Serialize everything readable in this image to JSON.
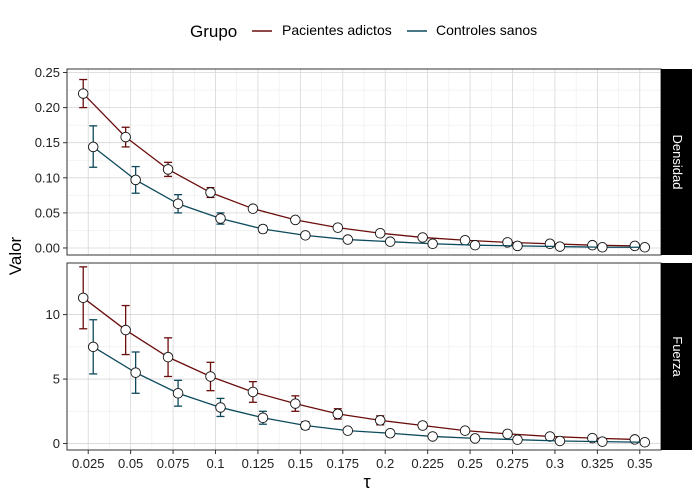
{
  "chart_data": {
    "type": "line",
    "legend": {
      "title": "Grupo",
      "placement": "top",
      "entries": [
        {
          "name": "Pacientes adictos",
          "color": "#6b0d0d"
        },
        {
          "name": "Controles sanos",
          "color": "#0d4a5c"
        }
      ]
    },
    "xlabel": "τ",
    "ylabel": "Valor",
    "x_ticks": [
      "0.025",
      "0.05",
      "0.075",
      "0.1",
      "0.125",
      "0.15",
      "0.175",
      "0.2",
      "0.225",
      "0.25",
      "0.275",
      "0.3",
      "0.325",
      "0.35"
    ],
    "x": [
      0.025,
      0.05,
      0.075,
      0.1,
      0.125,
      0.15,
      0.175,
      0.2,
      0.225,
      0.25,
      0.275,
      0.3,
      0.325,
      0.35
    ],
    "xlim": [
      0.0125,
      0.3625
    ],
    "grid": true,
    "panels": [
      {
        "strip": "Densidad",
        "ylim": [
          -0.01,
          0.255
        ],
        "y_ticks": [
          "0.00",
          "0.05",
          "0.10",
          "0.15",
          "0.20",
          "0.25"
        ],
        "y_tick_values": [
          0,
          0.05,
          0.1,
          0.15,
          0.2,
          0.25
        ],
        "series": [
          {
            "name": "Pacientes adictos",
            "values": [
              0.22,
              0.158,
              0.112,
              0.079,
              0.056,
              0.04,
              0.029,
              0.021,
              0.015,
              0.011,
              0.008,
              0.006,
              0.004,
              0.003
            ],
            "lower": [
              0.2,
              0.144,
              0.102,
              0.072,
              0.052,
              0.037,
              0.027,
              0.019,
              0.014,
              0.01,
              0.007,
              0.005,
              0.003,
              0.002
            ],
            "upper": [
              0.24,
              0.172,
              0.122,
              0.086,
              0.06,
              0.043,
              0.031,
              0.023,
              0.016,
              0.012,
              0.009,
              0.007,
              0.005,
              0.004
            ]
          },
          {
            "name": "Controles sanos",
            "values": [
              0.144,
              0.097,
              0.063,
              0.042,
              0.027,
              0.018,
              0.012,
              0.009,
              0.006,
              0.004,
              0.003,
              0.002,
              0.001,
              0.001
            ],
            "lower": [
              0.115,
              0.078,
              0.05,
              0.034,
              0.022,
              0.015,
              0.01,
              0.007,
              0.005,
              0.003,
              0.002,
              0.001,
              0.0005,
              0.0005
            ],
            "upper": [
              0.174,
              0.116,
              0.076,
              0.05,
              0.032,
              0.021,
              0.014,
              0.011,
              0.007,
              0.005,
              0.004,
              0.003,
              0.0015,
              0.0015
            ]
          }
        ]
      },
      {
        "strip": "Fuerza",
        "ylim": [
          -0.5,
          14.0
        ],
        "y_ticks": [
          "0",
          "5",
          "10"
        ],
        "y_tick_values": [
          0,
          5,
          10
        ],
        "series": [
          {
            "name": "Pacientes adictos",
            "values": [
              11.3,
              8.8,
              6.7,
              5.2,
              4.0,
              3.1,
              2.3,
              1.8,
              1.4,
              1.0,
              0.75,
              0.55,
              0.42,
              0.32
            ],
            "lower": [
              8.9,
              6.9,
              5.2,
              4.1,
              3.2,
              2.5,
              1.9,
              1.45,
              1.15,
              0.85,
              0.6,
              0.45,
              0.35,
              0.25
            ],
            "upper": [
              13.7,
              10.7,
              8.2,
              6.3,
              4.8,
              3.7,
              2.7,
              2.15,
              1.65,
              1.15,
              0.9,
              0.65,
              0.5,
              0.39
            ]
          },
          {
            "name": "Controles sanos",
            "values": [
              7.5,
              5.5,
              3.9,
              2.8,
              2.0,
              1.4,
              1.0,
              0.8,
              0.55,
              0.4,
              0.3,
              0.2,
              0.15,
              0.1
            ],
            "lower": [
              5.4,
              3.9,
              2.9,
              2.1,
              1.5,
              1.1,
              0.8,
              0.6,
              0.4,
              0.3,
              0.2,
              0.15,
              0.1,
              0.06
            ],
            "upper": [
              9.6,
              7.1,
              4.9,
              3.5,
              2.5,
              1.7,
              1.2,
              1.0,
              0.7,
              0.5,
              0.4,
              0.25,
              0.2,
              0.14
            ]
          }
        ]
      }
    ]
  }
}
